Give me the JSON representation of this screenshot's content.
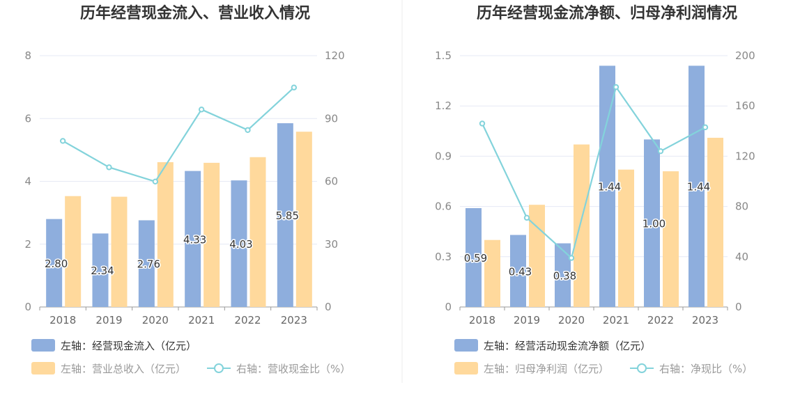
{
  "colors": {
    "bar_primary": "#8eaedd",
    "bar_secondary": "#ffd99c",
    "line": "#83d3db",
    "grid": "#e6e9f5",
    "axis": "#999999",
    "divider": "#eeeeee",
    "legend_text_dark": "#333333",
    "legend_text_light": "#999999"
  },
  "chart_data": [
    {
      "type": "bar",
      "title": "历年经营现金流入、营业收入情况",
      "categories": [
        "2018",
        "2019",
        "2020",
        "2021",
        "2022",
        "2023"
      ],
      "y_left": {
        "ticks": [
          "0",
          "2",
          "4",
          "6",
          "8"
        ],
        "range": [
          0,
          8
        ]
      },
      "y_right": {
        "ticks": [
          "0",
          "30",
          "60",
          "90",
          "120"
        ],
        "range": [
          0,
          120
        ]
      },
      "series": [
        {
          "name": "左轴：经营现金流入（亿元）",
          "type": "bar",
          "axis": "left",
          "values": [
            2.8,
            2.34,
            2.76,
            4.33,
            4.03,
            5.85
          ],
          "labels": [
            "2.80",
            "2.34",
            "2.76",
            "4.33",
            "4.03",
            "5.85"
          ]
        },
        {
          "name": "左轴：营业总收入（亿元）",
          "type": "bar",
          "axis": "left",
          "values": [
            3.53,
            3.51,
            4.61,
            4.59,
            4.77,
            5.58
          ]
        },
        {
          "name": "右轴：营收现金比（%）",
          "type": "line",
          "axis": "right",
          "values": [
            79.3,
            66.7,
            59.9,
            94.3,
            84.5,
            104.8
          ]
        }
      ],
      "legend": {
        "row1": [
          "左轴：经营现金流入（亿元）"
        ],
        "row2": [
          "左轴：营业总收入（亿元）",
          "右轴：营收现金比（%）"
        ]
      }
    },
    {
      "type": "bar",
      "title": "历年经营现金流净额、归母净利润情况",
      "categories": [
        "2018",
        "2019",
        "2020",
        "2021",
        "2022",
        "2023"
      ],
      "y_left": {
        "ticks": [
          "0",
          "0.3",
          "0.6",
          "0.9",
          "1.2",
          "1.5"
        ],
        "range": [
          0,
          1.5
        ]
      },
      "y_right": {
        "ticks": [
          "0",
          "40",
          "80",
          "120",
          "160",
          "200"
        ],
        "range": [
          0,
          200
        ]
      },
      "series": [
        {
          "name": "左轴：经营活动现金流净额（亿元）",
          "type": "bar",
          "axis": "left",
          "values": [
            0.59,
            0.43,
            0.38,
            1.44,
            1.0,
            1.44
          ],
          "labels": [
            "0.59",
            "0.43",
            "0.38",
            "1.44",
            "1.00",
            "1.44"
          ]
        },
        {
          "name": "左轴：归母净利润（亿元）",
          "type": "bar",
          "axis": "left",
          "values": [
            0.4,
            0.61,
            0.97,
            0.82,
            0.81,
            1.01
          ]
        },
        {
          "name": "右轴：净现比（%）",
          "type": "line",
          "axis": "right",
          "values": [
            146,
            71,
            39,
            175,
            124,
            143
          ]
        }
      ],
      "legend": {
        "row1": [
          "左轴：经营活动现金流净额（亿元）"
        ],
        "row2": [
          "左轴：归母净利润（亿元）",
          "右轴：净现比（%）"
        ]
      }
    }
  ]
}
